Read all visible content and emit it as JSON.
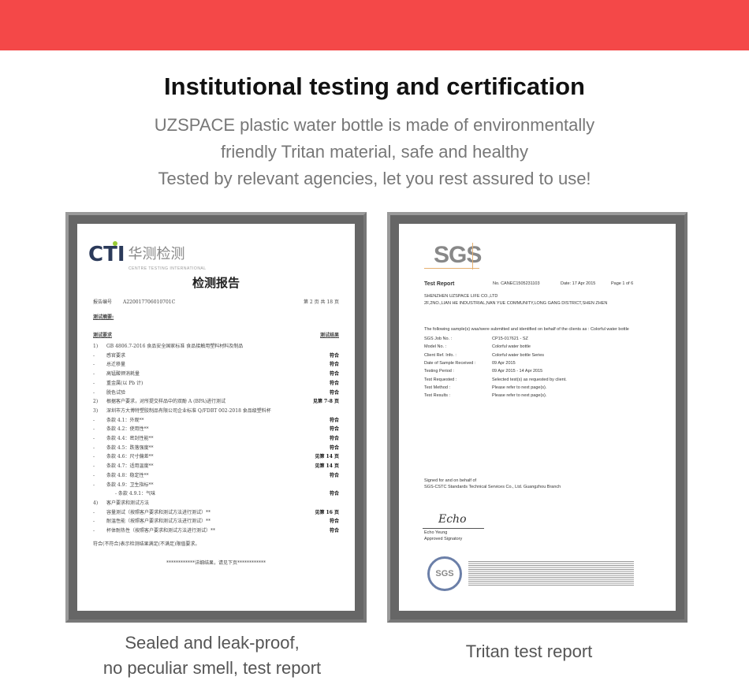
{
  "header": {
    "title": "Institutional testing and certification",
    "lines": [
      "UZSPACE plastic water bottle is made of environmentally",
      "friendly Tritan material, safe and healthy",
      "Tested by relevant agencies, let you rest assured to use!"
    ],
    "banner_color": "#f44848"
  },
  "left_card": {
    "caption_lines": [
      "Sealed and leak-proof,",
      "no peculiar smell, test report"
    ],
    "doc": {
      "logo": "CTI",
      "logo_cn": "华测检测",
      "logo_en": "CENTRE TESTING INTERNATIONAL",
      "title": "检测报告",
      "report_no_label": "报告编号",
      "report_no": "A2200177060107​01C",
      "page": "第 2 页 共 18 页",
      "section": "测试摘要:",
      "col_req": "测试要求",
      "col_res": "测试结果",
      "rows": [
        {
          "n": "1)",
          "t": "GB 4806.7-2016 食品安全国家标准 食品接触用塑料材料及制品",
          "r": ""
        },
        {
          "n": "-",
          "t": "感官要求",
          "r": "符合"
        },
        {
          "n": "-",
          "t": "总迁移量",
          "r": "符合"
        },
        {
          "n": "-",
          "t": "高锰酸钾消耗量",
          "r": "符合"
        },
        {
          "n": "-",
          "t": "重金属(以 Pb 计)",
          "r": "符合"
        },
        {
          "n": "-",
          "t": "脱色试验",
          "r": "符合"
        },
        {
          "n": "2)",
          "t": "根据客户要求，对所提交样品中的双酚 A (BPA)进行测试",
          "r": "见第 7-8 页"
        },
        {
          "n": "3)",
          "t": "深圳市方大博特塑胶制品有限公司企业标准 Q/FDBT 002-2018 食品级塑料杯",
          "r": ""
        },
        {
          "n": "-",
          "t": "条款 4.1：外观**",
          "r": "符合"
        },
        {
          "n": "-",
          "t": "条款 4.2：使用性**",
          "r": "符合"
        },
        {
          "n": "-",
          "t": "条款 4.4：密封性能**",
          "r": "符合"
        },
        {
          "n": "-",
          "t": "条款 4.5：跌落强度**",
          "r": "符合"
        },
        {
          "n": "-",
          "t": "条款 4.6：尺寸偏差**",
          "r": "见第 14 页"
        },
        {
          "n": "-",
          "t": "条款 4.7：适用温度**",
          "r": "见第 14 页"
        },
        {
          "n": "-",
          "t": "条款 4.8：稳定性**",
          "r": "符合"
        },
        {
          "n": "-",
          "t": "条款 4.9：卫生指标**",
          "r": ""
        },
        {
          "n": "",
          "t": "- 条款 4.9.1：气味",
          "r": "符合",
          "sub": true
        },
        {
          "n": "4)",
          "t": "客户要求和测试方法",
          "r": ""
        },
        {
          "n": "-",
          "t": "容量测试（按照客户要求和测试方法进行测试）**",
          "r": "见第 16 页"
        },
        {
          "n": "-",
          "t": "耐温性能（按照客户要求和测试方法进行测试）**",
          "r": "符合"
        },
        {
          "n": "-",
          "t": "杯体耐热性（按照客户要求和测试方法进行测试）**",
          "r": "符合"
        }
      ],
      "note": "符合(不符合)表示检测结果满足(不满足)限值要求。",
      "footer": "************详细结果，请见下页************"
    }
  },
  "right_card": {
    "caption": "Tritan test report",
    "doc": {
      "logo": "SGS",
      "title": "Test Report",
      "no": "No. CANEC1505231103",
      "date": "Date: 17 Apr 2015",
      "page": "Page 1 of 6",
      "company": "SHENZHEN UZSPACE LIFE CO.,LTD",
      "address": "2F,2NO.,LIAN HE INDUSTRIAL,NAN YUE COMMUNITY,LONG GANG DISTRICT,SHEN ZHEN",
      "intro": "The following sample(s) was/were submitted and identified on behalf of the clients as : Colorful water bottle",
      "fields": [
        {
          "k": "SGS Job No. :",
          "v": "CP15-017621 - SZ"
        },
        {
          "k": "Model No. :",
          "v": "Colorful water bottle"
        },
        {
          "k": "Client Ref. Info. :",
          "v": "Colorful water bottle Series"
        },
        {
          "k": "Date of Sample Received :",
          "v": "09 Apr 2015"
        },
        {
          "k": "Testing Period :",
          "v": "09 Apr 2015 - 14 Apr 2015"
        },
        {
          "k": "Test Requested :",
          "v": "Selected test(s) as requested by client."
        },
        {
          "k": "Test Method :",
          "v": "Please refer to next page(s)."
        },
        {
          "k": "Test Results :",
          "v": "Please refer to next page(s)."
        }
      ],
      "signed1": "Signed for and on behalf of",
      "signed2": "SGS-CSTC Standards Technical Services Co., Ltd. Guangzhou Branch",
      "signature": "Echo",
      "signer": "Echo Yeung",
      "signer_title": "Approved Signatory",
      "seal": "SGS"
    }
  }
}
